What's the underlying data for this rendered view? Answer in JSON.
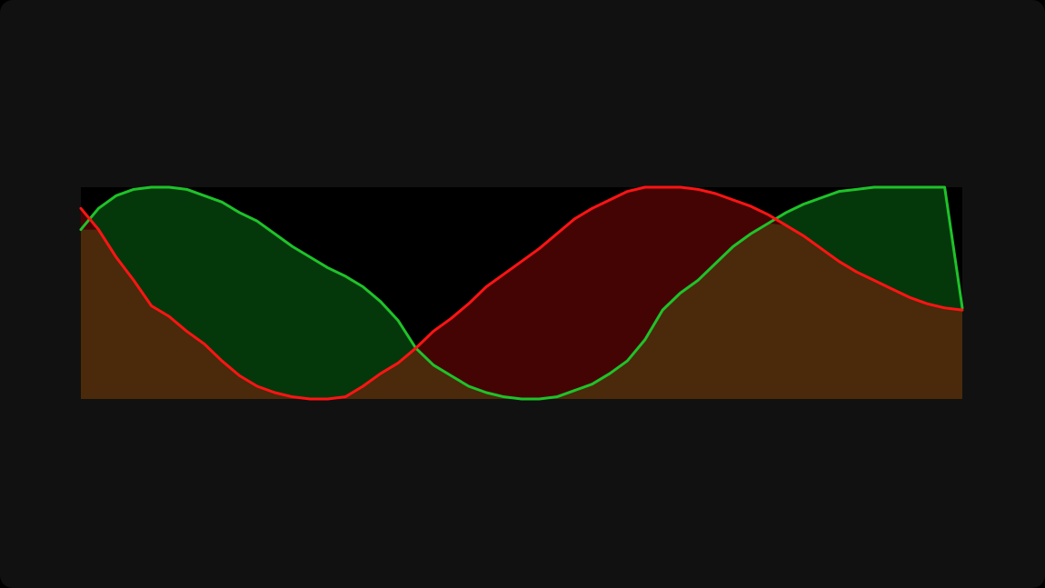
{
  "chart_data": {
    "type": "area",
    "title": "",
    "xlabel": "",
    "ylabel": "",
    "xlim": [
      0,
      100
    ],
    "ylim": [
      0,
      1
    ],
    "grid": false,
    "legend": "none",
    "background": "#000000",
    "page_background": "#111111",
    "border_color": "#111111",
    "overlap_color": "#4a2a0a",
    "series": [
      {
        "color": "#1fc22a",
        "fill": "#04380b",
        "x": [
          0,
          2,
          4,
          6,
          8,
          10,
          12,
          14,
          16,
          18,
          20,
          22,
          24,
          26,
          28,
          30,
          32,
          34,
          36,
          38,
          40,
          42,
          44,
          46,
          48,
          50,
          52,
          54,
          56,
          58,
          60,
          62,
          64,
          66,
          68,
          70,
          72,
          74,
          76,
          78,
          80,
          82,
          84,
          86,
          88,
          90,
          92,
          94,
          96,
          98,
          100
        ],
        "values": [
          0.8,
          0.9,
          0.96,
          0.99,
          1.0,
          1.0,
          0.99,
          0.96,
          0.93,
          0.88,
          0.84,
          0.78,
          0.72,
          0.67,
          0.62,
          0.58,
          0.53,
          0.46,
          0.37,
          0.24,
          0.16,
          0.11,
          0.06,
          0.03,
          0.01,
          0.0,
          0.0,
          0.01,
          0.04,
          0.07,
          0.12,
          0.18,
          0.28,
          0.42,
          0.5,
          0.56,
          0.64,
          0.72,
          0.78,
          0.83,
          0.88,
          0.92,
          0.95,
          0.98,
          0.99,
          1.0,
          1.0,
          1.0,
          1.0,
          1.0,
          0.43
        ]
      },
      {
        "color": "#ff1414",
        "fill": "#440404",
        "x": [
          0,
          2,
          4,
          6,
          8,
          10,
          12,
          14,
          16,
          18,
          20,
          22,
          24,
          26,
          28,
          30,
          32,
          34,
          36,
          38,
          40,
          42,
          44,
          46,
          48,
          50,
          52,
          54,
          56,
          58,
          60,
          62,
          64,
          66,
          68,
          70,
          72,
          74,
          76,
          78,
          80,
          82,
          84,
          86,
          88,
          90,
          92,
          94,
          96,
          98,
          100
        ],
        "values": [
          0.9,
          0.8,
          0.67,
          0.56,
          0.44,
          0.39,
          0.32,
          0.26,
          0.18,
          0.11,
          0.06,
          0.03,
          0.01,
          0.0,
          0.0,
          0.01,
          0.06,
          0.12,
          0.17,
          0.24,
          0.32,
          0.38,
          0.45,
          0.53,
          0.59,
          0.65,
          0.71,
          0.78,
          0.85,
          0.9,
          0.94,
          0.98,
          1.0,
          1.0,
          1.0,
          0.99,
          0.97,
          0.94,
          0.91,
          0.87,
          0.82,
          0.77,
          0.71,
          0.65,
          0.6,
          0.56,
          0.52,
          0.48,
          0.45,
          0.43,
          0.42
        ]
      }
    ]
  }
}
